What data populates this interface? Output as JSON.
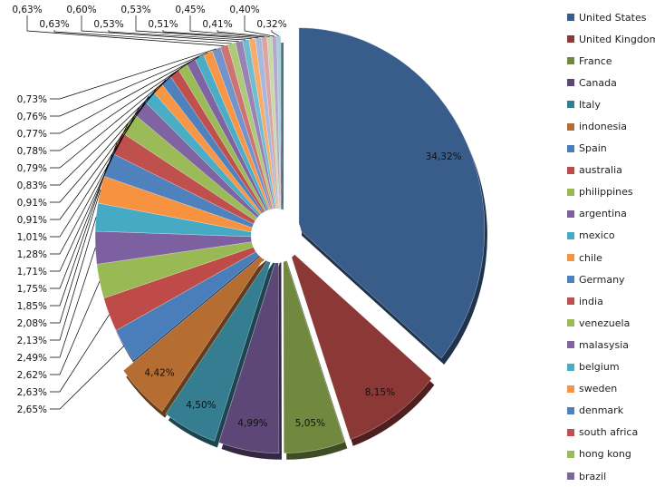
{
  "chart_data": {
    "type": "pie",
    "variant": "3d-exploded",
    "legend_position": "right",
    "start": "top, clockwise",
    "slices": [
      {
        "name": "United States",
        "value": 34.32,
        "label": "34,32%",
        "color": "#385D8A"
      },
      {
        "name": "United Kingdom",
        "value": 8.15,
        "label": "8,15%",
        "color": "#8C3836"
      },
      {
        "name": "France",
        "value": 5.05,
        "label": "5,05%",
        "color": "#71893F"
      },
      {
        "name": "Canada",
        "value": 4.99,
        "label": "4,99%",
        "color": "#5C4776"
      },
      {
        "name": "Italy",
        "value": 4.5,
        "label": "4,50%",
        "color": "#357D91"
      },
      {
        "name": "indonesia",
        "value": 4.42,
        "label": "4,42%",
        "color": "#B66D31"
      },
      {
        "name": "Spain",
        "value": 2.65,
        "label": "2,65%",
        "color": "#4A7EBB"
      },
      {
        "name": "australia",
        "value": 2.63,
        "label": "2,63%",
        "color": "#BE4B48"
      },
      {
        "name": "philippines",
        "value": 2.62,
        "label": "2,62%",
        "color": "#98B954"
      },
      {
        "name": "argentina",
        "value": 2.49,
        "label": "2,49%",
        "color": "#7D60A0"
      },
      {
        "name": "mexico",
        "value": 2.13,
        "label": "2,13%",
        "color": "#46AAC5"
      },
      {
        "name": "chile",
        "value": 2.08,
        "label": "2,08%",
        "color": "#F69240"
      },
      {
        "name": "Germany",
        "value": 1.85,
        "label": "1,85%",
        "color": "#4F81BD"
      },
      {
        "name": "india",
        "value": 1.75,
        "label": "1,75%",
        "color": "#C0504D"
      },
      {
        "name": "venezuela",
        "value": 1.71,
        "label": "1,71%",
        "color": "#9BBB59"
      },
      {
        "name": "malasysia",
        "value": 1.28,
        "label": "1,28%",
        "color": "#8064A2"
      },
      {
        "name": "belgium",
        "value": 1.01,
        "label": "1,01%",
        "color": "#4BACC6"
      },
      {
        "name": "sweden",
        "value": 0.91,
        "label": "0,91%",
        "color": "#F79646"
      },
      {
        "name": "denmark",
        "value": 0.91,
        "label": "0,91%",
        "color": "#4F81BD"
      },
      {
        "name": "south africa",
        "value": 0.83,
        "label": "0,83%",
        "color": "#C0504D"
      },
      {
        "name": "hong kong",
        "value": 0.79,
        "label": "0,79%",
        "color": "#9BBB59"
      },
      {
        "name": "brazil",
        "value": 0.78,
        "label": "0,78%",
        "color": "#8064A2"
      },
      {
        "name": "",
        "value": 0.77,
        "label": "0,77%",
        "color": "#4BACC6"
      },
      {
        "name": "",
        "value": 0.76,
        "label": "0,76%",
        "color": "#F79646"
      },
      {
        "name": "",
        "value": 0.73,
        "label": "0,73%",
        "color": "#7394CA"
      },
      {
        "name": "",
        "value": 0.63,
        "label": "0,63%",
        "color": "#CD7371"
      },
      {
        "name": "",
        "value": 0.63,
        "label": "0,63%",
        "color": "#AFC97A"
      },
      {
        "name": "",
        "value": 0.6,
        "label": "0,60%",
        "color": "#9983B5"
      },
      {
        "name": "",
        "value": 0.53,
        "label": "0,53%",
        "color": "#6FBDD1"
      },
      {
        "name": "",
        "value": 0.53,
        "label": "0,53%",
        "color": "#F9AB6B"
      },
      {
        "name": "",
        "value": 0.51,
        "label": "0,51%",
        "color": "#A5B9DC"
      },
      {
        "name": "",
        "value": 0.45,
        "label": "0,45%",
        "color": "#DCA3A2"
      },
      {
        "name": "",
        "value": 0.41,
        "label": "0,41%",
        "color": "#C7D9A8"
      },
      {
        "name": "",
        "value": 0.4,
        "label": "0,40%",
        "color": "#B6A7CB"
      },
      {
        "name": "",
        "value": 0.32,
        "label": "0,32%",
        "color": "#9FD0DE"
      }
    ]
  }
}
